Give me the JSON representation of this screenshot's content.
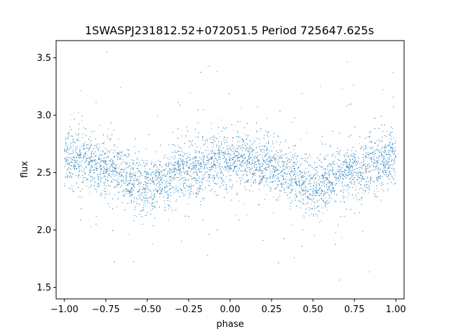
{
  "chart_data": {
    "type": "scatter",
    "title": "1SWASPJ231812.52+072051.5 Period 725647.625s",
    "xlabel": "phase",
    "ylabel": "flux",
    "xlim": [
      -1.05,
      1.05
    ],
    "ylim": [
      1.4,
      3.65
    ],
    "xticks": [
      -1.0,
      -0.75,
      -0.5,
      -0.25,
      0.0,
      0.25,
      0.5,
      0.75,
      1.0
    ],
    "xtick_labels": [
      "−1.00",
      "−0.75",
      "−0.50",
      "−0.25",
      "0.00",
      "0.25",
      "0.50",
      "0.75",
      "1.00"
    ],
    "yticks": [
      1.5,
      2.0,
      2.5,
      3.0,
      3.5
    ],
    "ytick_labels": [
      "1.5",
      "2.0",
      "2.5",
      "3.0",
      "3.5"
    ],
    "grid": false,
    "marker_color": "#1f77b4",
    "series": [
      {
        "x_range": [
          -1.0,
          1.0
        ],
        "profile_phase": [
          -1.0,
          -0.75,
          -0.5,
          -0.25,
          0.0,
          0.25,
          0.5,
          0.75,
          1.0
        ],
        "profile_flux": [
          2.62,
          2.55,
          2.38,
          2.52,
          2.62,
          2.55,
          2.38,
          2.52,
          2.62
        ],
        "core_spread": 0.12,
        "y_range": [
          1.5,
          3.55
        ]
      }
    ]
  }
}
